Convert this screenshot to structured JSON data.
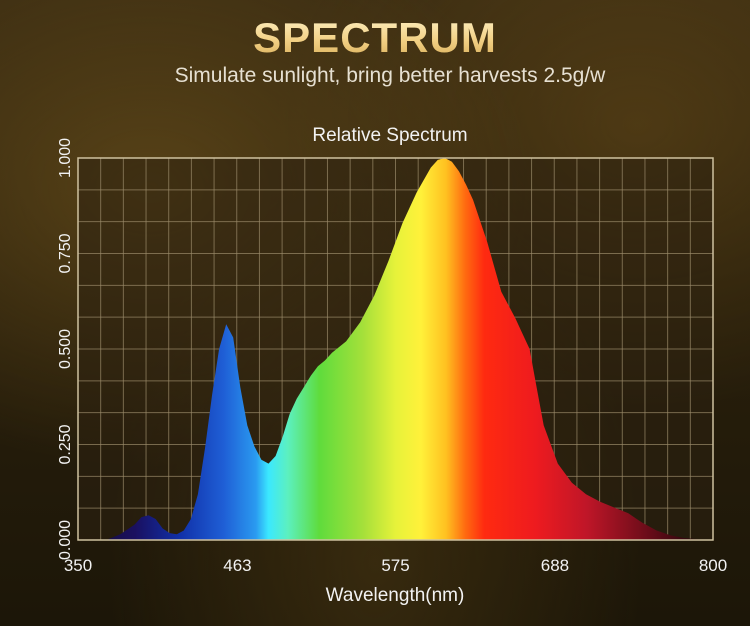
{
  "header": {
    "title": "SPECTRUM",
    "subtitle": "Simulate sunlight, bring better harvests 2.5g/w"
  },
  "chart_data": {
    "type": "area",
    "title": "Relative Spectrum",
    "xlabel": "Wavelength(nm)",
    "ylabel": "",
    "x_ticks": [
      "350",
      "463",
      "575",
      "688",
      "800"
    ],
    "y_ticks": [
      "0.000",
      "0.250",
      "0.500",
      "0.750",
      "1.000"
    ],
    "xlim": [
      350,
      800
    ],
    "ylim": [
      0,
      1
    ],
    "grid": true,
    "colors": {
      "grid": "#9a8a6a",
      "background": "#2a2010"
    },
    "series": [
      {
        "x": [
          370,
          380,
          390,
          395,
          400,
          405,
          410,
          415,
          420,
          425,
          430,
          435,
          440,
          445,
          450,
          455,
          460,
          465,
          470,
          475,
          480,
          485,
          490,
          495,
          500,
          505,
          510,
          515,
          520,
          525,
          530,
          540,
          550,
          560,
          570,
          580,
          590,
          600,
          605,
          610,
          615,
          620,
          625,
          630,
          640,
          650,
          660,
          665,
          670,
          675,
          680,
          690,
          700,
          710,
          720,
          730,
          740,
          750,
          760,
          770,
          780,
          790,
          800
        ],
        "values": [
          0.0,
          0.015,
          0.04,
          0.06,
          0.065,
          0.055,
          0.03,
          0.018,
          0.015,
          0.025,
          0.055,
          0.12,
          0.24,
          0.38,
          0.5,
          0.565,
          0.53,
          0.4,
          0.3,
          0.245,
          0.21,
          0.2,
          0.22,
          0.27,
          0.33,
          0.37,
          0.4,
          0.43,
          0.455,
          0.47,
          0.49,
          0.52,
          0.57,
          0.64,
          0.73,
          0.83,
          0.91,
          0.975,
          0.995,
          1.0,
          0.99,
          0.965,
          0.93,
          0.89,
          0.78,
          0.65,
          0.58,
          0.54,
          0.5,
          0.4,
          0.3,
          0.2,
          0.15,
          0.12,
          0.1,
          0.085,
          0.07,
          0.045,
          0.025,
          0.012,
          0.005,
          0.002,
          0.0
        ]
      }
    ]
  }
}
